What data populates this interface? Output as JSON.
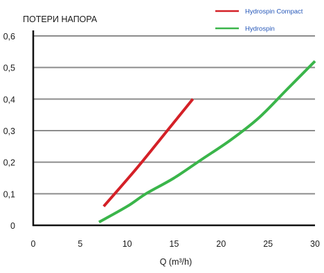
{
  "chart_data": {
    "type": "line",
    "ylabel": "ПОТЕРИ НАПОРА",
    "xlabel": "Q  (m³/h)",
    "xlim": [
      0,
      30
    ],
    "ylim": [
      0,
      0.6
    ],
    "x_ticks": [
      "0",
      "5",
      "10",
      "15",
      "20",
      "25",
      "30"
    ],
    "y_ticks": [
      "0",
      "0,1",
      "0,2",
      "0,3",
      "0,4",
      "0,5",
      "0,6"
    ],
    "grid": true,
    "legend_position": "top-right",
    "series": [
      {
        "name": "Hydrospin Compact",
        "color": "#d42027",
        "x": [
          7.5,
          11,
          14,
          17
        ],
        "y": [
          0.06,
          0.18,
          0.29,
          0.4
        ]
      },
      {
        "name": "Hydrospin",
        "color": "#3ab54a",
        "x": [
          7,
          10,
          12,
          15,
          18,
          21,
          24,
          27,
          30
        ],
        "y": [
          0.01,
          0.06,
          0.1,
          0.15,
          0.21,
          0.27,
          0.34,
          0.43,
          0.52
        ]
      }
    ]
  }
}
